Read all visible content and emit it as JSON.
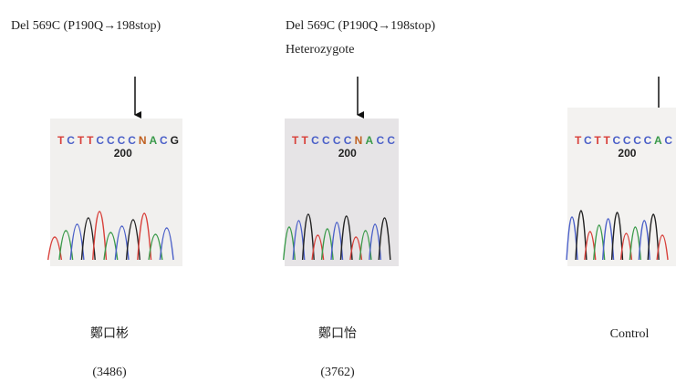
{
  "panels": [
    {
      "title": "Del 569C (P190Q→198stop)",
      "sequence": "TCTTCCCCNACG",
      "position": "200",
      "name": "鄭口彬",
      "id": "(3486)"
    },
    {
      "title": "Del 569C (P190Q→198stop)",
      "subtitle": "Heterozygote",
      "sequence": "TTCCCCNACC",
      "position": "200",
      "name": "鄭口怡",
      "id": "(3762)"
    },
    {
      "sequence": "TCTTCCCCAC",
      "position": "200",
      "name": "Control"
    }
  ]
}
